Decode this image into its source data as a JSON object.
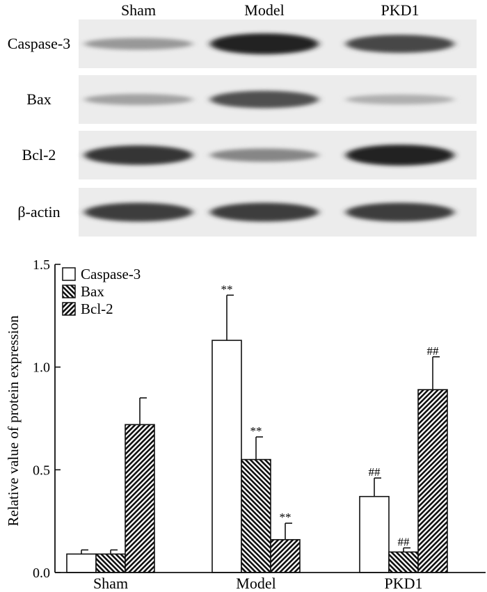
{
  "blot": {
    "lanes": [
      "Sham",
      "Model",
      "PKD1"
    ],
    "rows": [
      {
        "label": "Caspase-3",
        "intensity": [
          0.35,
          1.0,
          0.8
        ]
      },
      {
        "label": "Bax",
        "intensity": [
          0.3,
          0.75,
          0.22
        ]
      },
      {
        "label": "Bcl-2",
        "intensity": [
          0.9,
          0.45,
          1.0
        ]
      },
      {
        "label": "β-actin",
        "intensity": [
          0.85,
          0.85,
          0.85
        ]
      }
    ]
  },
  "chart_data": {
    "type": "bar",
    "categories": [
      "Sham",
      "Model",
      "PKD1"
    ],
    "ylabel": "Relative value of protein expression",
    "ylim": [
      0,
      1.5
    ],
    "yticks": [
      "0.0",
      "0.5",
      "1.0",
      "1.5"
    ],
    "legend_position": "top-left",
    "series": [
      {
        "name": "Caspase-3",
        "pattern": "open",
        "values": [
          0.09,
          1.13,
          0.37
        ],
        "errors": [
          0.02,
          0.22,
          0.09
        ],
        "annotations": [
          "",
          "**",
          "##"
        ]
      },
      {
        "name": "Bax",
        "pattern": "hatch-backslash",
        "values": [
          0.09,
          0.55,
          0.1
        ],
        "errors": [
          0.02,
          0.11,
          0.02
        ],
        "annotations": [
          "",
          "**",
          "##"
        ]
      },
      {
        "name": "Bcl-2",
        "pattern": "hatch-slash",
        "values": [
          0.72,
          0.16,
          0.89
        ],
        "errors": [
          0.13,
          0.08,
          0.16
        ],
        "annotations": [
          "",
          "**",
          "##"
        ]
      }
    ]
  }
}
